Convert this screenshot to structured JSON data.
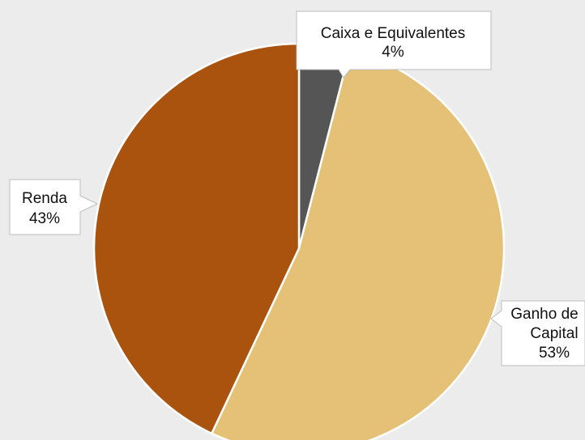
{
  "chart_data": {
    "type": "pie",
    "title": "",
    "slices": [
      {
        "label": "Caixa e Equivalentes",
        "value": 4,
        "value_label": "4%",
        "color": "#555555"
      },
      {
        "label": "Ganho de Capital",
        "value": 53,
        "value_label": "53%",
        "color": "#e4c176"
      },
      {
        "label": "Renda",
        "value": 43,
        "value_label": "43%",
        "color": "#a9530f"
      }
    ],
    "start": "top",
    "direction": "clockwise",
    "slice_border_color": "#ffffff",
    "background_color": "#ececec",
    "legend": "none",
    "data_labels": "callouts"
  }
}
